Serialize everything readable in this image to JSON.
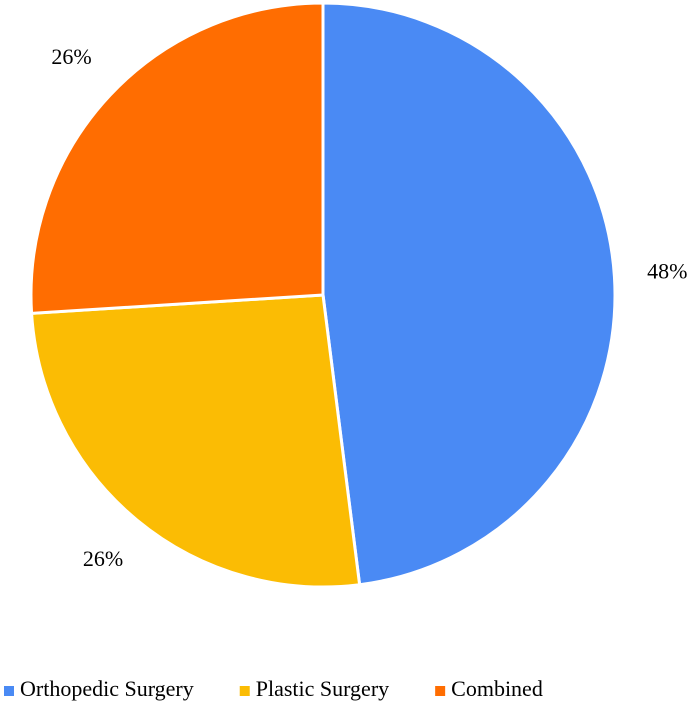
{
  "chart_data": {
    "type": "pie",
    "categories": [
      "Orthopedic Surgery",
      "Plastic Surgery",
      "Combined"
    ],
    "values": [
      48,
      26,
      26
    ],
    "value_labels": [
      "48%",
      "26%",
      "26%"
    ],
    "colors": [
      "#4a8af4",
      "#fbbc04",
      "#ff6d01"
    ],
    "legend": "bottom"
  }
}
